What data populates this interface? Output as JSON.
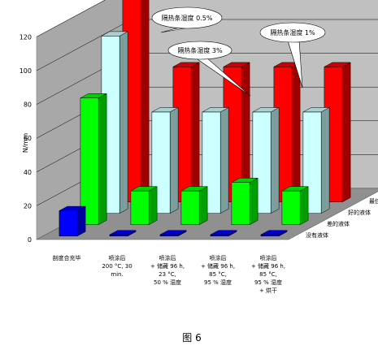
{
  "chart_data": {
    "type": "bar",
    "subtype": "3d-clustered-depth",
    "ylabel": "N/mm",
    "ylim": [
      0,
      120
    ],
    "yticks": [
      "0",
      "20",
      "40",
      "60",
      "80",
      "100",
      "120"
    ],
    "gridlines": true,
    "categories": [
      [
        "剖度合充毕"
      ],
      [
        "喷涂后",
        "200 °C, 30",
        "min."
      ],
      [
        "喷涂后",
        "+ 储藏 96 h,",
        "23 °C,",
        "50 % 湿度"
      ],
      [
        "喷涂后",
        "+ 储藏 96 h,",
        "85 °C,",
        "95 % 湿度"
      ],
      [
        "喷涂后",
        "+ 储藏 96 h,",
        "85 °C,",
        "95 % 湿度",
        "+ 烘干"
      ]
    ],
    "series": [
      {
        "name": "最佳液体",
        "color": "#ff0000",
        "values": [
          120,
          80,
          80,
          80,
          80
        ]
      },
      {
        "name": "好的液体",
        "color": "#ccffff",
        "values": [
          105,
          60,
          60,
          60,
          60
        ]
      },
      {
        "name": "差的液体",
        "color": "#00ff00",
        "values": [
          75,
          20,
          20,
          25,
          20
        ]
      },
      {
        "name": "没有液体",
        "color": "#0000ff",
        "values": [
          15,
          0,
          0,
          0,
          0
        ]
      }
    ],
    "callouts": [
      "隔热条湿度 0.5%",
      "隔热条湿度 3%",
      "隔热条湿度 1%"
    ],
    "caption": "图 6"
  }
}
